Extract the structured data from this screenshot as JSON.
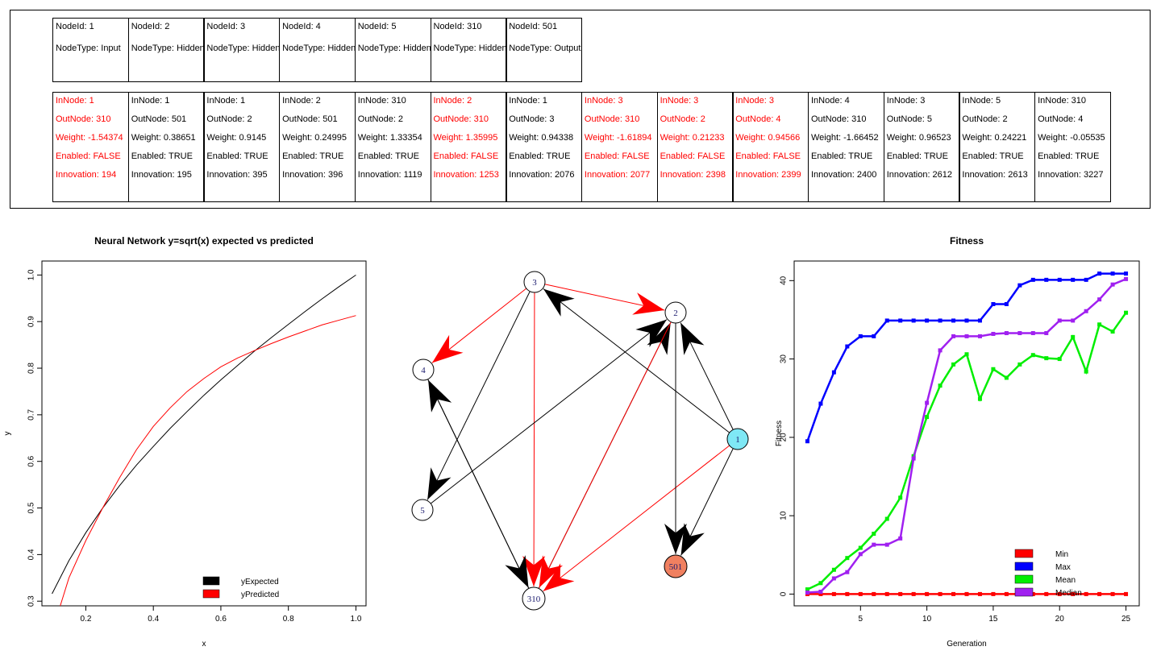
{
  "nodes": [
    {
      "id": "NodeId: 1",
      "type": "NodeType: Input"
    },
    {
      "id": "NodeId: 2",
      "type": "NodeType: Hidden"
    },
    {
      "id": "NodeId: 3",
      "type": "NodeType: Hidden"
    },
    {
      "id": "NodeId: 4",
      "type": "NodeType: Hidden"
    },
    {
      "id": "NodeId: 5",
      "type": "NodeType: Hidden"
    },
    {
      "id": "NodeId: 310",
      "type": "NodeType: Hidden"
    },
    {
      "id": "NodeId: 501",
      "type": "NodeType: Output"
    }
  ],
  "genes": [
    {
      "in": "InNode: 1",
      "out": "OutNode: 310",
      "weight": "Weight: -1.54374",
      "enabled": "Enabled: FALSE",
      "innovation": "Innovation: 194",
      "disabled": true
    },
    {
      "in": "InNode: 1",
      "out": "OutNode: 501",
      "weight": "Weight: 0.38651",
      "enabled": "Enabled: TRUE",
      "innovation": "Innovation: 195",
      "disabled": false
    },
    {
      "in": "InNode: 1",
      "out": "OutNode: 2",
      "weight": "Weight: 0.9145",
      "enabled": "Enabled: TRUE",
      "innovation": "Innovation: 395",
      "disabled": false
    },
    {
      "in": "InNode: 2",
      "out": "OutNode: 501",
      "weight": "Weight: 0.24995",
      "enabled": "Enabled: TRUE",
      "innovation": "Innovation: 396",
      "disabled": false
    },
    {
      "in": "InNode: 310",
      "out": "OutNode: 2",
      "weight": "Weight: 1.33354",
      "enabled": "Enabled: TRUE",
      "innovation": "Innovation: 1119",
      "disabled": false
    },
    {
      "in": "InNode: 2",
      "out": "OutNode: 310",
      "weight": "Weight: 1.35995",
      "enabled": "Enabled: FALSE",
      "innovation": "Innovation: 1253",
      "disabled": true
    },
    {
      "in": "InNode: 1",
      "out": "OutNode: 3",
      "weight": "Weight: 0.94338",
      "enabled": "Enabled: TRUE",
      "innovation": "Innovation: 2076",
      "disabled": false
    },
    {
      "in": "InNode: 3",
      "out": "OutNode: 310",
      "weight": "Weight: -1.61894",
      "enabled": "Enabled: FALSE",
      "innovation": "Innovation: 2077",
      "disabled": true
    },
    {
      "in": "InNode: 3",
      "out": "OutNode: 2",
      "weight": "Weight: 0.21233",
      "enabled": "Enabled: FALSE",
      "innovation": "Innovation: 2398",
      "disabled": true
    },
    {
      "in": "InNode: 3",
      "out": "OutNode: 4",
      "weight": "Weight: 0.94566",
      "enabled": "Enabled: FALSE",
      "innovation": "Innovation: 2399",
      "disabled": true
    },
    {
      "in": "InNode: 4",
      "out": "OutNode: 310",
      "weight": "Weight: -1.66452",
      "enabled": "Enabled: TRUE",
      "innovation": "Innovation: 2400",
      "disabled": false
    },
    {
      "in": "InNode: 3",
      "out": "OutNode: 5",
      "weight": "Weight: 0.96523",
      "enabled": "Enabled: TRUE",
      "innovation": "Innovation: 2612",
      "disabled": false
    },
    {
      "in": "InNode: 5",
      "out": "OutNode: 2",
      "weight": "Weight: 0.24221",
      "enabled": "Enabled: TRUE",
      "innovation": "Innovation: 2613",
      "disabled": false
    },
    {
      "in": "InNode: 310",
      "out": "OutNode: 4",
      "weight": "Weight: -0.05535",
      "enabled": "Enabled: TRUE",
      "innovation": "Innovation: 3227",
      "disabled": false
    }
  ],
  "graph": {
    "nodes": [
      {
        "label": "1",
        "fill": "#7fe8f5"
      },
      {
        "label": "2",
        "fill": "#ffffff"
      },
      {
        "label": "3",
        "fill": "#ffffff"
      },
      {
        "label": "4",
        "fill": "#ffffff"
      },
      {
        "label": "5",
        "fill": "#ffffff"
      },
      {
        "label": "310",
        "fill": "#ffffff"
      },
      {
        "label": "501",
        "fill": "#f08060"
      }
    ],
    "edges": [
      {
        "from": "1",
        "to": "310",
        "color": "#ff0000"
      },
      {
        "from": "1",
        "to": "501",
        "color": "#000000"
      },
      {
        "from": "1",
        "to": "2",
        "color": "#000000"
      },
      {
        "from": "2",
        "to": "501",
        "color": "#000000"
      },
      {
        "from": "310",
        "to": "2",
        "color": "#000000"
      },
      {
        "from": "2",
        "to": "310",
        "color": "#ff0000"
      },
      {
        "from": "1",
        "to": "3",
        "color": "#000000"
      },
      {
        "from": "3",
        "to": "310",
        "color": "#ff0000"
      },
      {
        "from": "3",
        "to": "2",
        "color": "#ff0000"
      },
      {
        "from": "3",
        "to": "4",
        "color": "#ff0000"
      },
      {
        "from": "4",
        "to": "310",
        "color": "#000000"
      },
      {
        "from": "3",
        "to": "5",
        "color": "#000000"
      },
      {
        "from": "5",
        "to": "2",
        "color": "#000000"
      },
      {
        "from": "310",
        "to": "4",
        "color": "#000000"
      }
    ]
  },
  "chart_data": [
    {
      "type": "line",
      "title": "Neural Network y=sqrt(x) expected vs predicted",
      "xlabel": "x",
      "ylabel": "y",
      "xlim": [
        0.07,
        1.03
      ],
      "ylim": [
        0.29,
        1.03
      ],
      "xticks": [
        "0.2",
        "0.4",
        "0.6",
        "0.8",
        "1.0"
      ],
      "yticks": [
        "0.3",
        "0.4",
        "0.5",
        "0.6",
        "0.7",
        "0.8",
        "0.9",
        "1.0"
      ],
      "legend": "bottom-right",
      "series": [
        {
          "name": "yExpected",
          "color": "#000000",
          "x": [
            0.1,
            0.15,
            0.2,
            0.25,
            0.3,
            0.35,
            0.4,
            0.45,
            0.5,
            0.55,
            0.6,
            0.65,
            0.7,
            0.75,
            0.8,
            0.85,
            0.9,
            0.95,
            1.0
          ],
          "y": [
            0.316,
            0.387,
            0.447,
            0.5,
            0.548,
            0.592,
            0.632,
            0.671,
            0.707,
            0.742,
            0.775,
            0.806,
            0.837,
            0.866,
            0.894,
            0.922,
            0.949,
            0.975,
            1.0
          ]
        },
        {
          "name": "yPredicted",
          "color": "#ff0000",
          "x": [
            0.12,
            0.15,
            0.2,
            0.25,
            0.3,
            0.35,
            0.4,
            0.45,
            0.5,
            0.55,
            0.6,
            0.65,
            0.7,
            0.75,
            0.8,
            0.85,
            0.9,
            0.95,
            1.0
          ],
          "y": [
            0.28,
            0.35,
            0.43,
            0.5,
            0.565,
            0.625,
            0.675,
            0.715,
            0.75,
            0.778,
            0.803,
            0.822,
            0.838,
            0.853,
            0.867,
            0.88,
            0.893,
            0.903,
            0.913
          ]
        }
      ]
    },
    {
      "type": "line",
      "title": "Fitness",
      "xlabel": "Generation",
      "ylabel": "Fitness",
      "xlim": [
        0,
        26
      ],
      "ylim": [
        -1.5,
        42.5
      ],
      "xticks": [
        "5",
        "10",
        "15",
        "20",
        "25"
      ],
      "yticks": [
        "0",
        "10",
        "20",
        "30",
        "40"
      ],
      "legend": "bottom-right",
      "series": [
        {
          "name": "Min",
          "color": "#ff0000",
          "x": [
            1,
            2,
            3,
            4,
            5,
            6,
            7,
            8,
            9,
            10,
            11,
            12,
            13,
            14,
            15,
            16,
            17,
            18,
            19,
            20,
            21,
            22,
            23,
            24,
            25
          ],
          "y": [
            0,
            0,
            0,
            0,
            0,
            0,
            0,
            0,
            0,
            0,
            0,
            0,
            0,
            0,
            0,
            0,
            0,
            0,
            0,
            0,
            0,
            0,
            0,
            0,
            0
          ]
        },
        {
          "name": "Max",
          "color": "#0000ff",
          "x": [
            1,
            2,
            3,
            4,
            5,
            6,
            7,
            8,
            9,
            10,
            11,
            12,
            13,
            14,
            15,
            16,
            17,
            18,
            19,
            20,
            21,
            22,
            23,
            24,
            25
          ],
          "y": [
            19.5,
            24.3,
            28.3,
            31.6,
            32.9,
            32.9,
            34.9,
            34.9,
            34.9,
            34.9,
            34.9,
            34.9,
            34.9,
            34.9,
            37.0,
            37.0,
            39.4,
            40.1,
            40.1,
            40.1,
            40.1,
            40.1,
            40.9,
            40.9,
            40.9
          ]
        },
        {
          "name": "Mean",
          "color": "#00ee00",
          "x": [
            1,
            2,
            3,
            4,
            5,
            6,
            7,
            8,
            9,
            10,
            11,
            12,
            13,
            14,
            15,
            16,
            17,
            18,
            19,
            20,
            21,
            22,
            23,
            24,
            25
          ],
          "y": [
            0.6,
            1.4,
            3.1,
            4.6,
            5.9,
            7.7,
            9.6,
            12.3,
            17.6,
            22.6,
            26.6,
            29.3,
            30.6,
            24.9,
            28.7,
            27.6,
            29.3,
            30.5,
            30.1,
            30.0,
            32.8,
            28.4,
            34.4,
            33.5,
            35.9
          ]
        },
        {
          "name": "Median",
          "color": "#a020f0",
          "x": [
            1,
            2,
            3,
            4,
            5,
            6,
            7,
            8,
            9,
            10,
            11,
            12,
            13,
            14,
            15,
            16,
            17,
            18,
            19,
            20,
            21,
            22,
            23,
            24,
            25
          ],
          "y": [
            0.2,
            0.3,
            2.0,
            2.8,
            5.1,
            6.3,
            6.3,
            7.1,
            17.3,
            24.4,
            31.1,
            32.9,
            32.9,
            32.9,
            33.2,
            33.3,
            33.3,
            33.3,
            33.3,
            34.9,
            34.9,
            36.1,
            37.6,
            39.5,
            40.2
          ]
        }
      ]
    }
  ]
}
